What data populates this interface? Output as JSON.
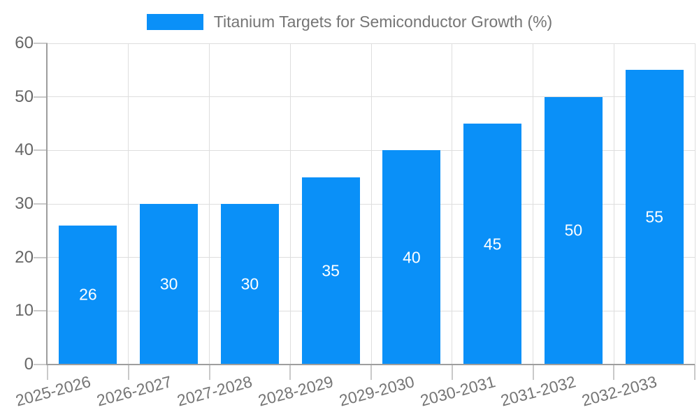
{
  "chart_data": {
    "type": "bar",
    "title": "Titanium Targets for Semiconductor Growth (%)",
    "categories": [
      "2025-2026",
      "2026-2027",
      "2027-2028",
      "2028-2029",
      "2029-2030",
      "2030-2031",
      "2031-2032",
      "2032-2033"
    ],
    "values": [
      26,
      30,
      30,
      35,
      40,
      45,
      50,
      55
    ],
    "value_labels": [
      "26",
      "30",
      "30",
      "35",
      "40",
      "45",
      "50",
      "55"
    ],
    "xlabel": "",
    "ylabel": "",
    "ylim": [
      0,
      60
    ],
    "yticks": [
      0,
      10,
      20,
      30,
      40,
      50,
      60
    ],
    "grid": true,
    "legend_position": "top",
    "colors": {
      "bar": "#0a90f8",
      "value_label": "#ffffff",
      "grid": "#dedede",
      "axis": "#9e9e9e",
      "tick": "#c9c9c9",
      "ytick_label": "#666666",
      "xtick_label": "#757575",
      "legend_text": "#757575",
      "background": "#ffffff"
    }
  }
}
